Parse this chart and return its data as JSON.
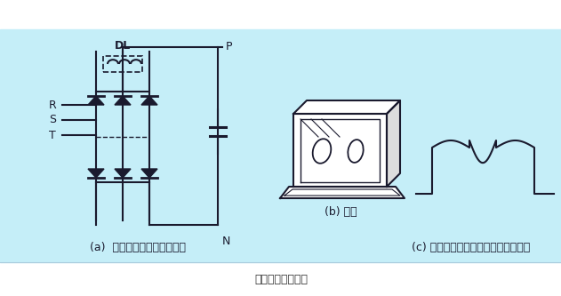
{
  "bg_color": "#c5eef8",
  "white_bg": "#ffffff",
  "line_color": "#1a1a2e",
  "title_main": "直流电抗器的作用",
  "caption_a": "(a)  直流电抗器的电路中位置",
  "caption_b": "(b) 外形",
  "caption_c": "(c) 接入直流电抗器后输入电流的波形",
  "label_DL": "DL",
  "label_P": "P",
  "label_N": "N",
  "label_R": "R",
  "label_S": "S",
  "label_T": "T",
  "font_size_caption": 9,
  "font_size_title": 9,
  "font_size_label": 9
}
